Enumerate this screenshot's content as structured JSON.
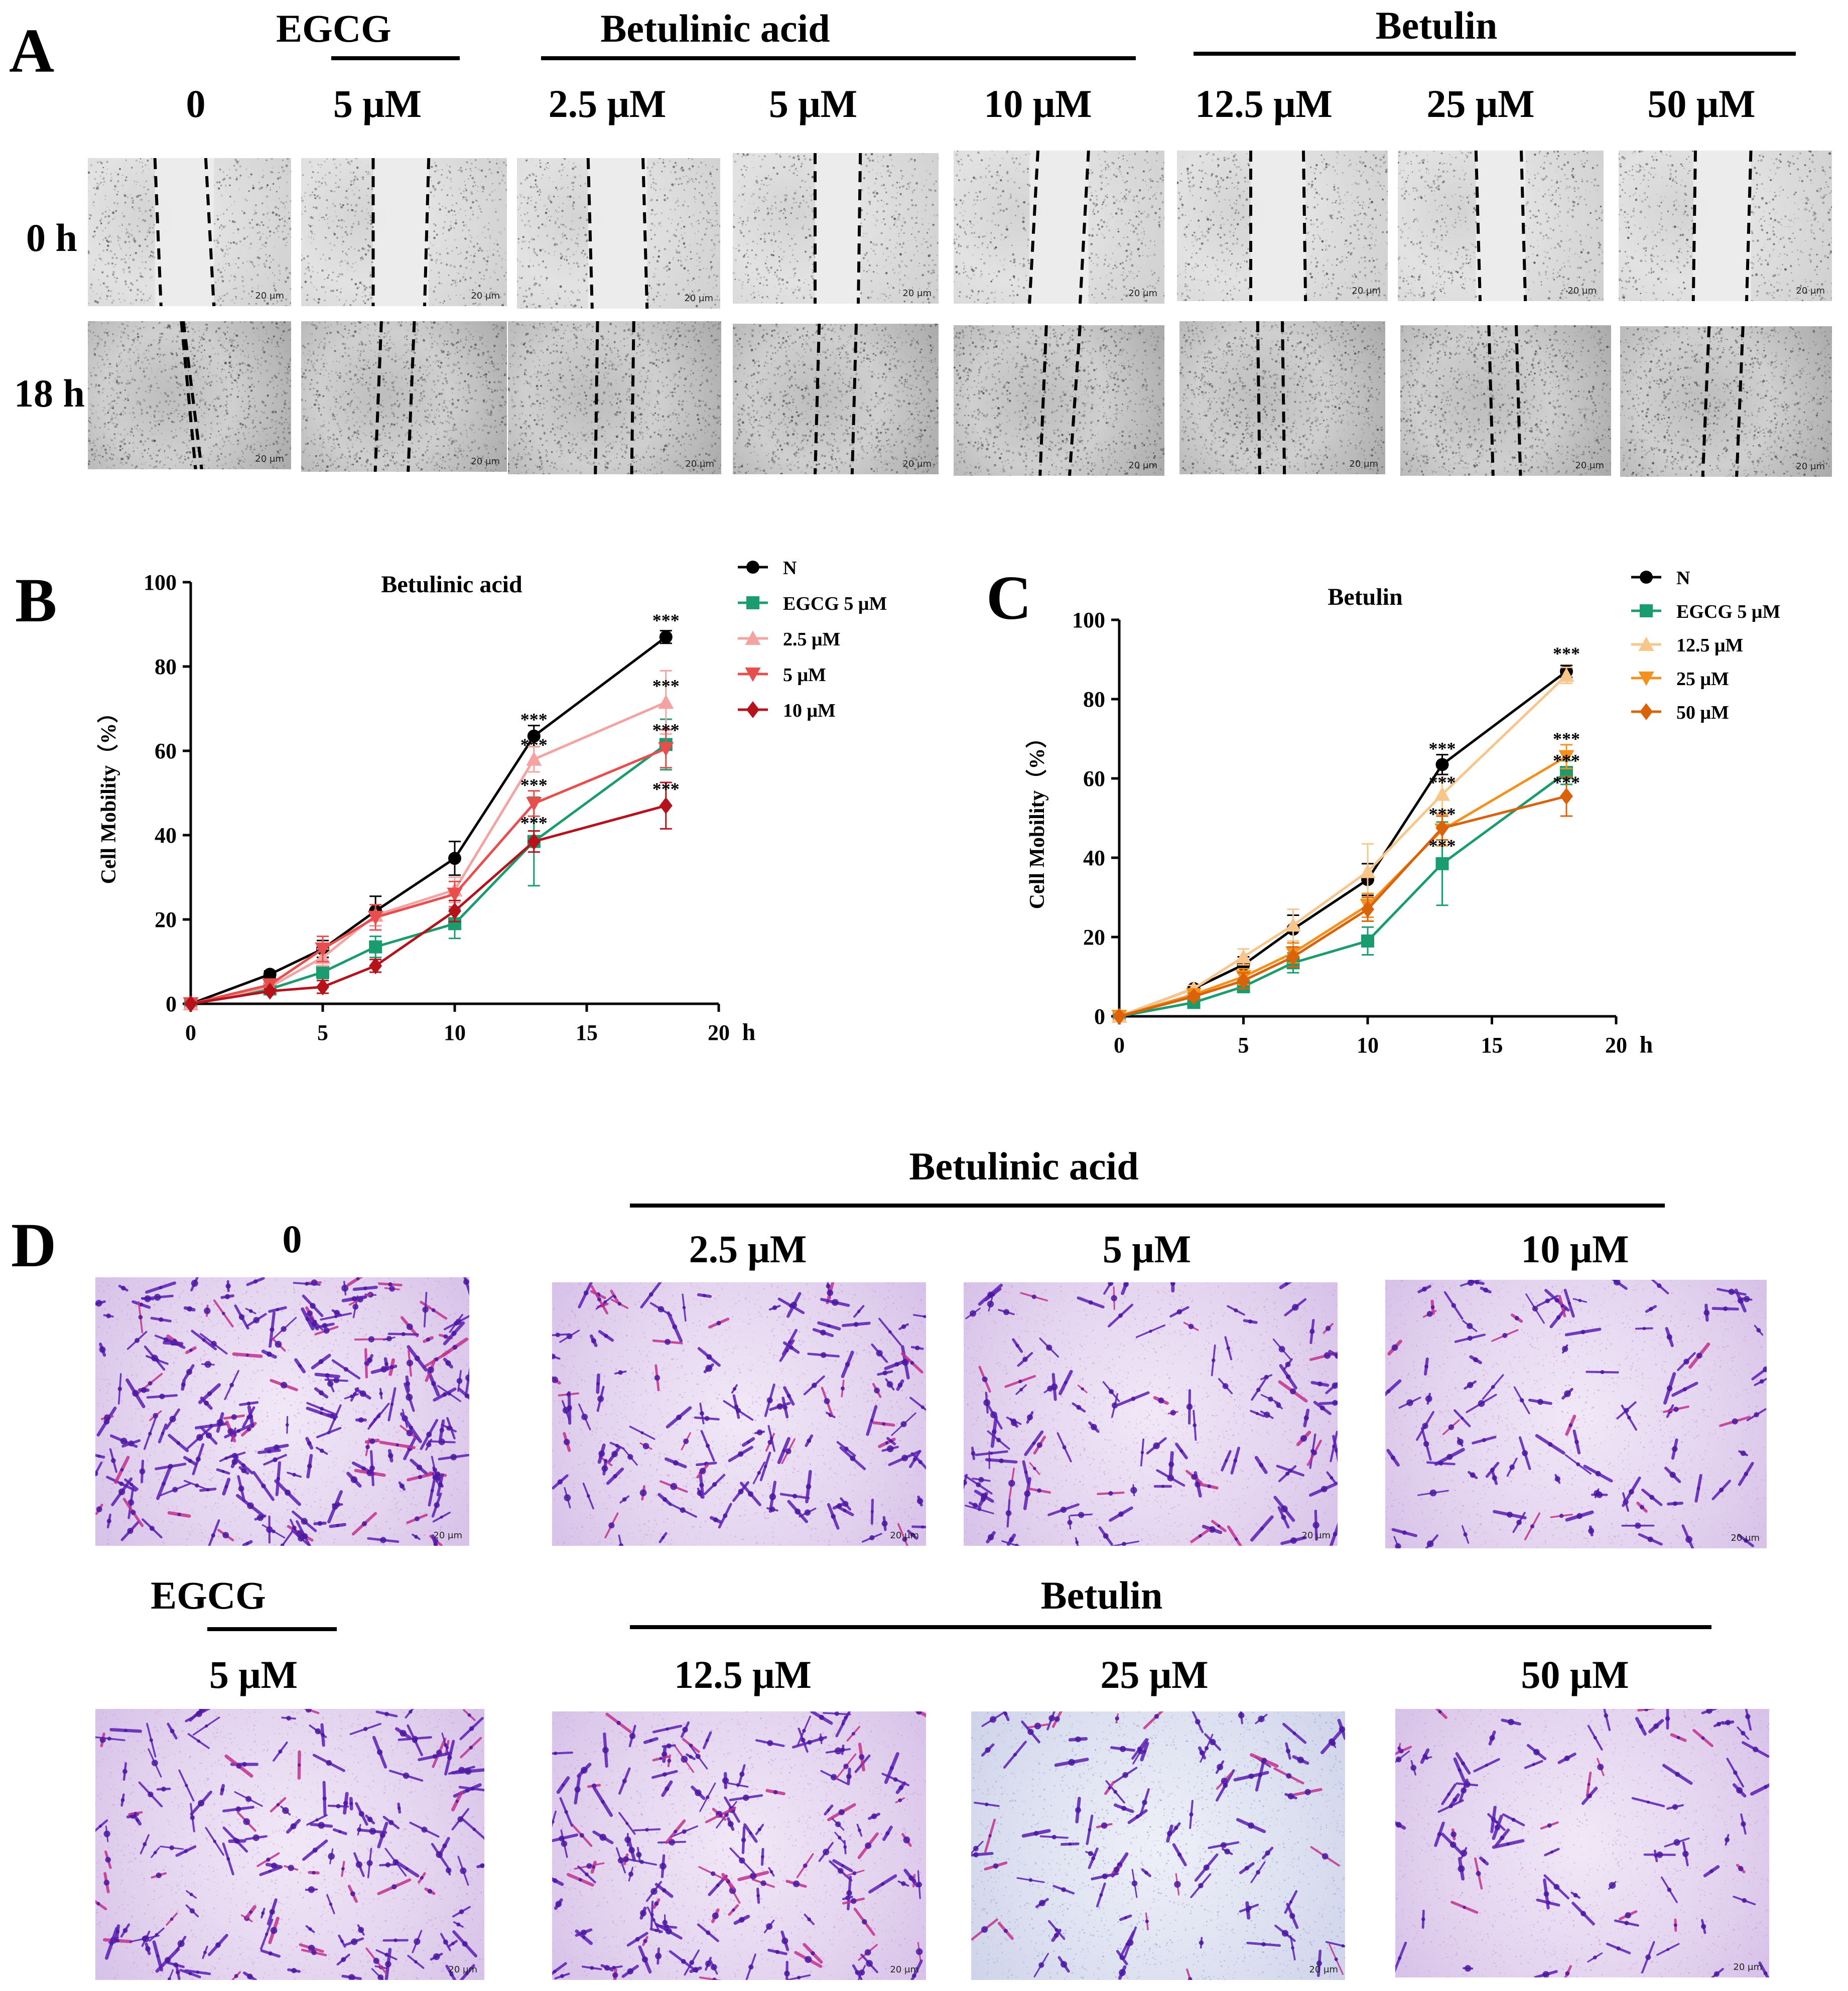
{
  "panel_letters": {
    "A": "A",
    "B": "B",
    "C": "C",
    "D": "D"
  },
  "panel_a": {
    "groups": {
      "egcg": "EGCG",
      "betulinic_acid": "Betulinic acid",
      "betulin": "Betulin"
    },
    "conditions": [
      "0",
      "5 μM",
      "2.5 μM",
      "5 μM",
      "10 μM",
      "12.5 μM",
      "25 μM",
      "50 μM"
    ],
    "rows": [
      "0 h",
      "18 h"
    ],
    "scale_label": "20 μm"
  },
  "panel_d": {
    "top_header": "Betulinic acid",
    "top_conditions": [
      "0",
      "2.5 μM",
      "5 μM",
      "10 μM"
    ],
    "bottom_group_egcg": "EGCG",
    "bottom_group_betulin": "Betulin",
    "bottom_conditions": [
      "5 μM",
      "12.5 μM",
      "25 μM",
      "50 μM"
    ],
    "scale_label": "20 μm"
  },
  "colors": {
    "N": "#000000",
    "EGCG": "#1a9c6e",
    "BA_2_5": "#f4a3a3",
    "BA_5": "#e84e4e",
    "BA_10": "#b5121b",
    "BT_12_5": "#f8c58a",
    "BT_25": "#f3901e",
    "BT_50": "#d9620b"
  },
  "chart_data": [
    {
      "type": "line",
      "title": "Betulinic acid",
      "xlabel": "h",
      "ylabel": "Cell Mobility（%）",
      "xlim": [
        0,
        20
      ],
      "ylim": [
        0,
        100
      ],
      "xticks": [
        0,
        5,
        10,
        15,
        20
      ],
      "yticks": [
        0,
        20,
        40,
        60,
        80,
        100
      ],
      "x": [
        0,
        3,
        5,
        7,
        10,
        13,
        18
      ],
      "series": [
        {
          "name": "N",
          "marker": "circle",
          "color": "#000000",
          "values": [
            0,
            7,
            13,
            22,
            34.5,
            63.5,
            87
          ],
          "errors": [
            0,
            0.8,
            2,
            3.5,
            4,
            2.5,
            1.5
          ]
        },
        {
          "name": "EGCG 5 μM",
          "marker": "square",
          "color": "#1a9c6e",
          "values": [
            0,
            3.5,
            7.5,
            13.5,
            19,
            38.5,
            61.5
          ],
          "errors": [
            0,
            0.8,
            1.5,
            2.5,
            3.5,
            10.5,
            6
          ]
        },
        {
          "name": "2.5 μM",
          "marker": "triangle-up",
          "color": "#f4a3a3",
          "values": [
            0,
            4,
            11,
            21,
            27,
            58,
            71.5
          ],
          "errors": [
            0,
            0.8,
            2,
            2.5,
            3,
            3,
            7.5
          ]
        },
        {
          "name": "5 μM",
          "marker": "triangle-down",
          "color": "#e84e4e",
          "values": [
            0,
            4.5,
            13,
            20.5,
            26,
            47.5,
            60.5
          ],
          "errors": [
            0,
            0.8,
            3,
            3,
            3,
            3,
            4.5
          ]
        },
        {
          "name": "10 μM",
          "marker": "diamond",
          "color": "#b5121b",
          "values": [
            0,
            3,
            4,
            9,
            22,
            38.5,
            47
          ],
          "errors": [
            0,
            0.5,
            1.5,
            1.5,
            2.5,
            2.5,
            5.5
          ]
        }
      ],
      "annotations": [
        {
          "x": 18,
          "y": 89.5,
          "text": "***"
        },
        {
          "x": 18,
          "y": 74,
          "text": "***"
        },
        {
          "x": 18,
          "y": 63.5,
          "text": "***"
        },
        {
          "x": 18,
          "y": 49.5,
          "text": "***"
        },
        {
          "x": 13,
          "y": 66,
          "text": "***"
        },
        {
          "x": 13,
          "y": 60,
          "text": "***"
        },
        {
          "x": 13,
          "y": 50.5,
          "text": "***"
        },
        {
          "x": 13,
          "y": 41.5,
          "text": "***"
        }
      ]
    },
    {
      "type": "line",
      "title": "Betulin",
      "xlabel": "h",
      "ylabel": "Cell Mobility（%）",
      "xlim": [
        0,
        20
      ],
      "ylim": [
        0,
        100
      ],
      "xticks": [
        0,
        5,
        10,
        15,
        20
      ],
      "yticks": [
        0,
        20,
        40,
        60,
        80,
        100
      ],
      "x": [
        0,
        3,
        5,
        7,
        10,
        13,
        18
      ],
      "series": [
        {
          "name": "N",
          "marker": "circle",
          "color": "#000000",
          "values": [
            0,
            7,
            13,
            22,
            34.5,
            63.5,
            87
          ],
          "errors": [
            0,
            0.8,
            2,
            3.5,
            4,
            2.5,
            1.5
          ]
        },
        {
          "name": "EGCG 5 μM",
          "marker": "square",
          "color": "#1a9c6e",
          "values": [
            0,
            3.5,
            7.5,
            13.5,
            19,
            38.5,
            61.5
          ],
          "errors": [
            0,
            0.8,
            1.5,
            2.5,
            3.5,
            10.5,
            3
          ]
        },
        {
          "name": "12.5 μM",
          "marker": "triangle-up",
          "color": "#f8c58a",
          "values": [
            0,
            7,
            15,
            23,
            36.5,
            56,
            86
          ],
          "errors": [
            0,
            0.8,
            2,
            4,
            7,
            4,
            2
          ]
        },
        {
          "name": "25 μM",
          "marker": "triangle-down",
          "color": "#f3901e",
          "values": [
            0,
            5.5,
            10,
            16,
            28,
            47,
            65.5
          ],
          "errors": [
            0,
            0.8,
            2,
            2.5,
            3,
            4,
            3
          ]
        },
        {
          "name": "50 μM",
          "marker": "diamond",
          "color": "#d9620b",
          "values": [
            0,
            5,
            9,
            15,
            27,
            47.5,
            55.5
          ],
          "errors": [
            0,
            0.8,
            2,
            2.5,
            3,
            3,
            5
          ]
        }
      ],
      "annotations": [
        {
          "x": 18,
          "y": 90,
          "text": "***"
        },
        {
          "x": 18,
          "y": 68.5,
          "text": "***"
        },
        {
          "x": 18,
          "y": 63,
          "text": "***"
        },
        {
          "x": 18,
          "y": 57.5,
          "text": "***"
        },
        {
          "x": 13,
          "y": 66,
          "text": "***"
        },
        {
          "x": 13,
          "y": 57.5,
          "text": "***"
        },
        {
          "x": 13,
          "y": 49.5,
          "text": "***"
        },
        {
          "x": 13,
          "y": 41.5,
          "text": "***"
        }
      ]
    }
  ]
}
